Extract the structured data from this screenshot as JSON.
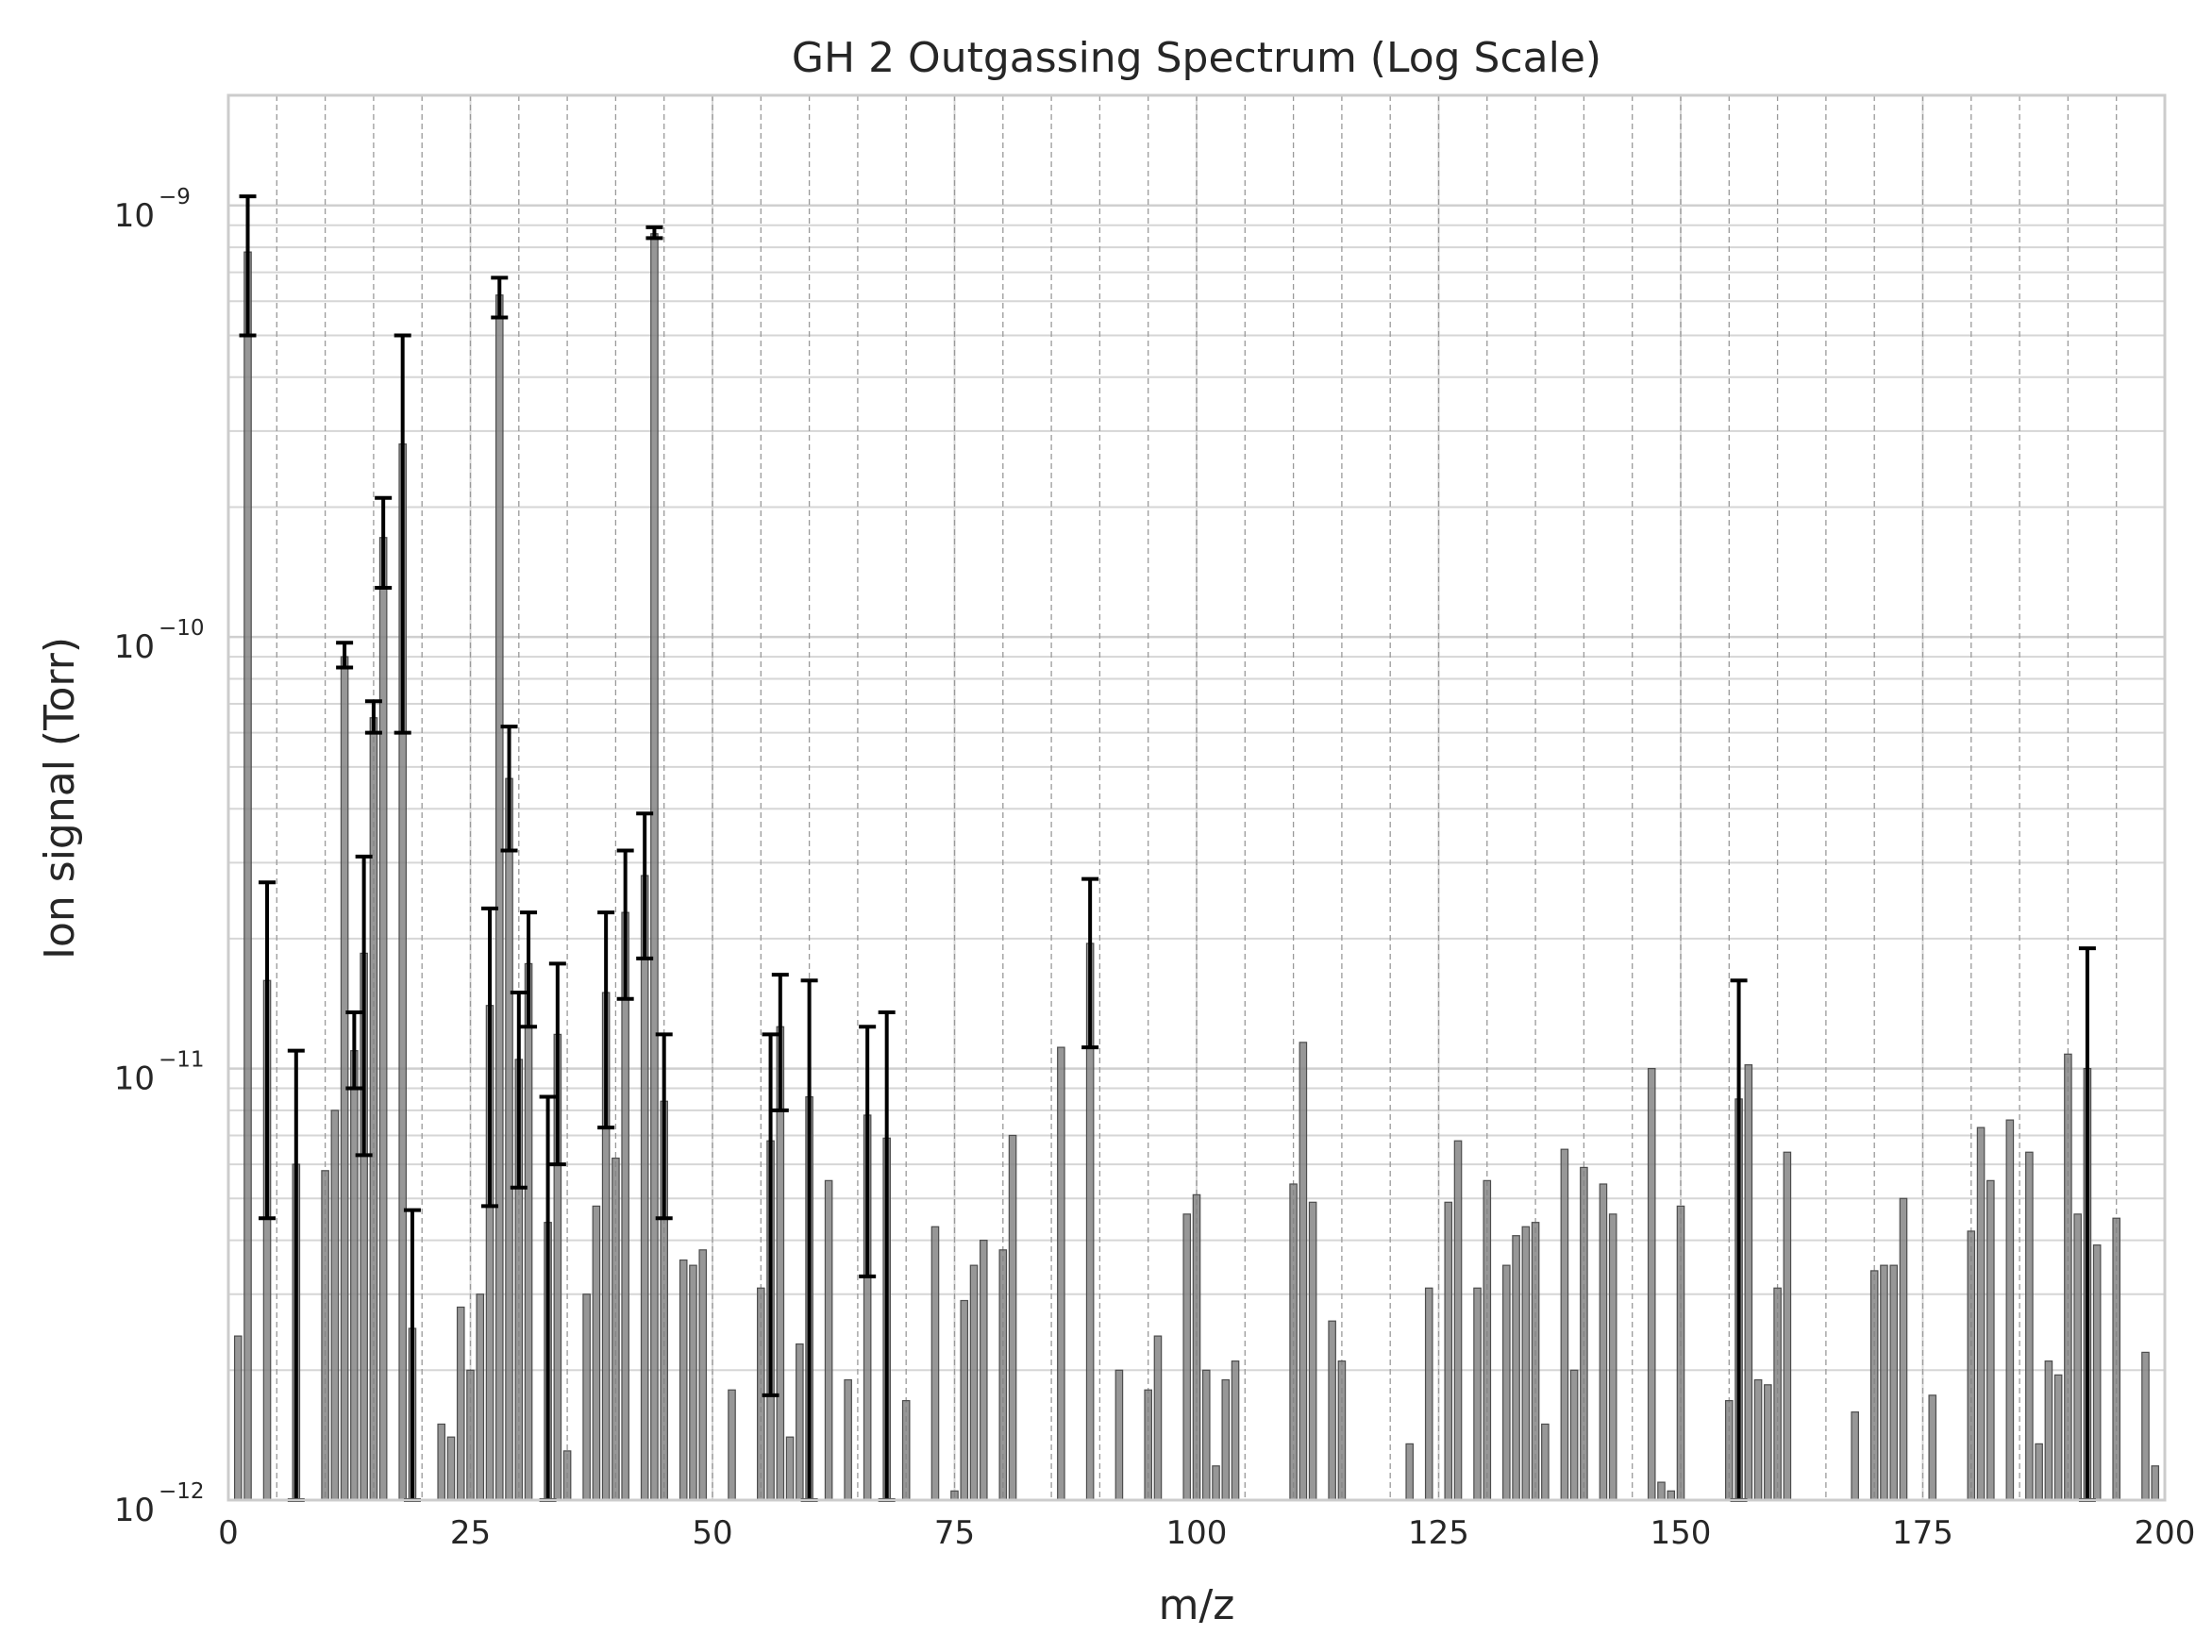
{
  "chart_data": {
    "type": "bar",
    "title": "GH 2 Outgassing Spectrum (Log Scale)",
    "xlabel": "m/z",
    "ylabel": "Ion signal (Torr)",
    "xlim": [
      0,
      200
    ],
    "ylim": [
      1e-12,
      1.8e-09
    ],
    "yscale": "log",
    "grid": true,
    "legend": "none",
    "bar_color": "#808080",
    "error_bar_color": "#000000",
    "x_ticks": [
      "0",
      "25",
      "50",
      "75",
      "100",
      "125",
      "150",
      "175",
      "200"
    ],
    "y_ticks": [
      {
        "base": "10",
        "exp": "−12",
        "value": 1e-12
      },
      {
        "base": "10",
        "exp": "−11",
        "value": 1e-11
      },
      {
        "base": "10",
        "exp": "−10",
        "value": 1e-10
      },
      {
        "base": "10",
        "exp": "−9",
        "value": 1e-09
      }
    ],
    "bars": [
      {
        "x": 1,
        "y": 2.4e-12
      },
      {
        "x": 2,
        "y": 7.8e-10,
        "err_low": 5e-10,
        "err_high": 1.05e-09
      },
      {
        "x": 4,
        "y": 1.6e-11,
        "err_low": 4.5e-12,
        "err_high": 2.7e-11
      },
      {
        "x": 7,
        "y": 6e-12,
        "err_low": 1e-12,
        "err_high": 1.1e-11
      },
      {
        "x": 10,
        "y": 5.8e-12
      },
      {
        "x": 11,
        "y": 8e-12
      },
      {
        "x": 12,
        "y": 9e-11,
        "err_low": 8.5e-11,
        "err_high": 9.7e-11
      },
      {
        "x": 13,
        "y": 1.1e-11,
        "err_low": 9e-12,
        "err_high": 1.35e-11
      },
      {
        "x": 14,
        "y": 1.85e-11,
        "err_low": 6.3e-12,
        "err_high": 3.1e-11
      },
      {
        "x": 15,
        "y": 6.5e-11,
        "err_low": 6e-11,
        "err_high": 7.1e-11
      },
      {
        "x": 16,
        "y": 1.7e-10,
        "err_low": 1.3e-10,
        "err_high": 2.1e-10
      },
      {
        "x": 18,
        "y": 2.8e-10,
        "err_low": 6e-11,
        "err_high": 5e-10
      },
      {
        "x": 19,
        "y": 2.5e-12,
        "err_low": 1e-12,
        "err_high": 4.7e-12
      },
      {
        "x": 22,
        "y": 1.5e-12
      },
      {
        "x": 23,
        "y": 1.4e-12
      },
      {
        "x": 24,
        "y": 2.8e-12
      },
      {
        "x": 25,
        "y": 2e-12
      },
      {
        "x": 26,
        "y": 3e-12
      },
      {
        "x": 27,
        "y": 1.4e-11,
        "err_low": 4.8e-12,
        "err_high": 2.35e-11
      },
      {
        "x": 28,
        "y": 6.2e-10,
        "err_low": 5.5e-10,
        "err_high": 6.8e-10
      },
      {
        "x": 29,
        "y": 4.7e-11,
        "err_low": 3.2e-11,
        "err_high": 6.2e-11
      },
      {
        "x": 30,
        "y": 1.05e-11,
        "err_low": 5.3e-12,
        "err_high": 1.5e-11
      },
      {
        "x": 31,
        "y": 1.75e-11,
        "err_low": 1.25e-11,
        "err_high": 2.3e-11
      },
      {
        "x": 33,
        "y": 4.4e-12,
        "err_low": 1e-12,
        "err_high": 8.6e-12
      },
      {
        "x": 34,
        "y": 1.2e-11,
        "err_low": 6e-12,
        "err_high": 1.75e-11
      },
      {
        "x": 35,
        "y": 1.3e-12
      },
      {
        "x": 37,
        "y": 3e-12
      },
      {
        "x": 38,
        "y": 4.8e-12
      },
      {
        "x": 39,
        "y": 1.5e-11,
        "err_low": 7.3e-12,
        "err_high": 2.3e-11
      },
      {
        "x": 40,
        "y": 6.2e-12
      },
      {
        "x": 41,
        "y": 2.3e-11,
        "err_low": 1.45e-11,
        "err_high": 3.2e-11
      },
      {
        "x": 43,
        "y": 2.8e-11,
        "err_low": 1.8e-11,
        "err_high": 3.9e-11
      },
      {
        "x": 44,
        "y": 8.6e-10,
        "err_low": 8.4e-10,
        "err_high": 8.9e-10
      },
      {
        "x": 45,
        "y": 8.4e-12,
        "err_low": 4.5e-12,
        "err_high": 1.2e-11
      },
      {
        "x": 47,
        "y": 3.6e-12
      },
      {
        "x": 48,
        "y": 3.5e-12
      },
      {
        "x": 49,
        "y": 3.8e-12
      },
      {
        "x": 52,
        "y": 1.8e-12
      },
      {
        "x": 55,
        "y": 3.1e-12
      },
      {
        "x": 56,
        "y": 6.8e-12,
        "err_low": 1.75e-12,
        "err_high": 1.2e-11
      },
      {
        "x": 57,
        "y": 1.25e-11,
        "err_low": 8e-12,
        "err_high": 1.65e-11
      },
      {
        "x": 58,
        "y": 1.4e-12
      },
      {
        "x": 59,
        "y": 2.3e-12
      },
      {
        "x": 60,
        "y": 8.6e-12,
        "err_low": 1e-12,
        "err_high": 1.6e-11
      },
      {
        "x": 62,
        "y": 5.5e-12
      },
      {
        "x": 64,
        "y": 1.9e-12
      },
      {
        "x": 66,
        "y": 7.8e-12,
        "err_low": 3.3e-12,
        "err_high": 1.25e-11
      },
      {
        "x": 68,
        "y": 6.9e-12,
        "err_low": 1e-12,
        "err_high": 1.35e-11
      },
      {
        "x": 70,
        "y": 1.7e-12
      },
      {
        "x": 73,
        "y": 4.3e-12
      },
      {
        "x": 75,
        "y": 1.05e-12
      },
      {
        "x": 76,
        "y": 2.9e-12
      },
      {
        "x": 77,
        "y": 3.5e-12
      },
      {
        "x": 78,
        "y": 4e-12
      },
      {
        "x": 80,
        "y": 3.8e-12
      },
      {
        "x": 81,
        "y": 7e-12
      },
      {
        "x": 86,
        "y": 1.12e-11
      },
      {
        "x": 89,
        "y": 1.95e-11,
        "err_low": 1.12e-11,
        "err_high": 2.75e-11
      },
      {
        "x": 92,
        "y": 2e-12
      },
      {
        "x": 95,
        "y": 1.8e-12
      },
      {
        "x": 96,
        "y": 2.4e-12
      },
      {
        "x": 99,
        "y": 4.6e-12
      },
      {
        "x": 100,
        "y": 5.1e-12
      },
      {
        "x": 101,
        "y": 2e-12
      },
      {
        "x": 102,
        "y": 1.2e-12
      },
      {
        "x": 103,
        "y": 1.9e-12
      },
      {
        "x": 104,
        "y": 2.1e-12
      },
      {
        "x": 110,
        "y": 5.4e-12
      },
      {
        "x": 111,
        "y": 1.15e-11
      },
      {
        "x": 112,
        "y": 4.9e-12
      },
      {
        "x": 114,
        "y": 2.6e-12
      },
      {
        "x": 115,
        "y": 2.1e-12
      },
      {
        "x": 122,
        "y": 1.35e-12
      },
      {
        "x": 124,
        "y": 3.1e-12
      },
      {
        "x": 126,
        "y": 4.9e-12
      },
      {
        "x": 127,
        "y": 6.8e-12
      },
      {
        "x": 129,
        "y": 3.1e-12
      },
      {
        "x": 130,
        "y": 5.5e-12
      },
      {
        "x": 132,
        "y": 3.5e-12
      },
      {
        "x": 133,
        "y": 4.1e-12
      },
      {
        "x": 134,
        "y": 4.3e-12
      },
      {
        "x": 135,
        "y": 4.4e-12
      },
      {
        "x": 136,
        "y": 1.5e-12
      },
      {
        "x": 138,
        "y": 6.5e-12
      },
      {
        "x": 139,
        "y": 2e-12
      },
      {
        "x": 140,
        "y": 5.9e-12
      },
      {
        "x": 142,
        "y": 5.4e-12
      },
      {
        "x": 143,
        "y": 4.6e-12
      },
      {
        "x": 147,
        "y": 1e-11
      },
      {
        "x": 148,
        "y": 1.1e-12
      },
      {
        "x": 149,
        "y": 1.05e-12
      },
      {
        "x": 150,
        "y": 4.8e-12
      },
      {
        "x": 155,
        "y": 1.7e-12
      },
      {
        "x": 156,
        "y": 8.5e-12,
        "err_low": 1e-12,
        "err_high": 1.6e-11
      },
      {
        "x": 157,
        "y": 1.02e-11
      },
      {
        "x": 158,
        "y": 1.9e-12
      },
      {
        "x": 159,
        "y": 1.85e-12
      },
      {
        "x": 160,
        "y": 3.1e-12
      },
      {
        "x": 161,
        "y": 6.4e-12
      },
      {
        "x": 168,
        "y": 1.6e-12
      },
      {
        "x": 170,
        "y": 3.4e-12
      },
      {
        "x": 171,
        "y": 3.5e-12
      },
      {
        "x": 172,
        "y": 3.5e-12
      },
      {
        "x": 173,
        "y": 5e-12
      },
      {
        "x": 176,
        "y": 1.75e-12
      },
      {
        "x": 180,
        "y": 4.2e-12
      },
      {
        "x": 181,
        "y": 7.3e-12
      },
      {
        "x": 182,
        "y": 5.5e-12
      },
      {
        "x": 184,
        "y": 7.6e-12
      },
      {
        "x": 186,
        "y": 6.4e-12
      },
      {
        "x": 187,
        "y": 1.35e-12
      },
      {
        "x": 188,
        "y": 2.1e-12
      },
      {
        "x": 189,
        "y": 1.95e-12
      },
      {
        "x": 190,
        "y": 1.08e-11
      },
      {
        "x": 191,
        "y": 4.6e-12
      },
      {
        "x": 192,
        "y": 1e-11,
        "err_low": 1e-12,
        "err_high": 1.9e-11
      },
      {
        "x": 193,
        "y": 3.9e-12
      },
      {
        "x": 195,
        "y": 4.5e-12
      },
      {
        "x": 198,
        "y": 2.2e-12
      },
      {
        "x": 199,
        "y": 1.2e-12
      }
    ]
  }
}
